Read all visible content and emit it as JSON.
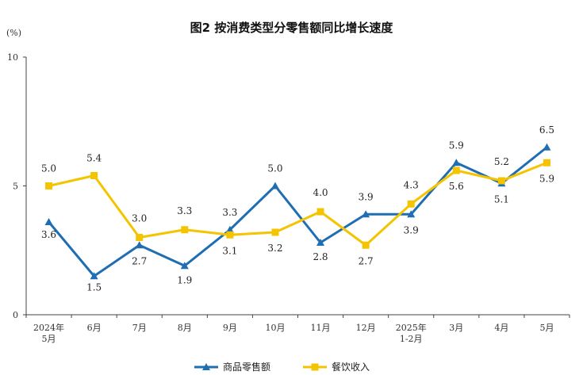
{
  "chart_data": {
    "type": "line",
    "title": "图2  按消费类型分零售额同比增长速度",
    "unit_label": "(%)",
    "categories": [
      [
        "2024年",
        "5月"
      ],
      [
        "6月"
      ],
      [
        "7月"
      ],
      [
        "8月"
      ],
      [
        "9月"
      ],
      [
        "10月"
      ],
      [
        "11月"
      ],
      [
        "12月"
      ],
      [
        "2025年",
        "1-2月"
      ],
      [
        "3月"
      ],
      [
        "4月"
      ],
      [
        "5月"
      ]
    ],
    "y_ticks": [
      "0",
      "5",
      "10"
    ],
    "ylim": [
      0,
      10
    ],
    "legend_position": "bottom-center",
    "series": [
      {
        "name": "商品零售额",
        "color": "#1f6db3",
        "marker": "triangle",
        "values": [
          3.6,
          1.5,
          2.7,
          1.9,
          3.3,
          5.0,
          2.8,
          3.9,
          3.9,
          5.9,
          5.1,
          6.5
        ],
        "labels": [
          "3.6",
          "1.5",
          "2.7",
          "1.9",
          "3.3",
          "5.0",
          "2.8",
          "3.9",
          "3.9",
          "5.9",
          "5.1",
          "6.5"
        ]
      },
      {
        "name": "餐饮收入",
        "color": "#f4c400",
        "marker": "square",
        "values": [
          5.0,
          5.4,
          3.0,
          3.3,
          3.1,
          3.2,
          4.0,
          2.7,
          4.3,
          5.6,
          5.2,
          5.9
        ],
        "labels": [
          "5.0",
          "5.4",
          "3.0",
          "3.3",
          "3.1",
          "3.2",
          "4.0",
          "2.7",
          "4.3",
          "5.6",
          "5.2",
          "5.9"
        ]
      }
    ]
  }
}
